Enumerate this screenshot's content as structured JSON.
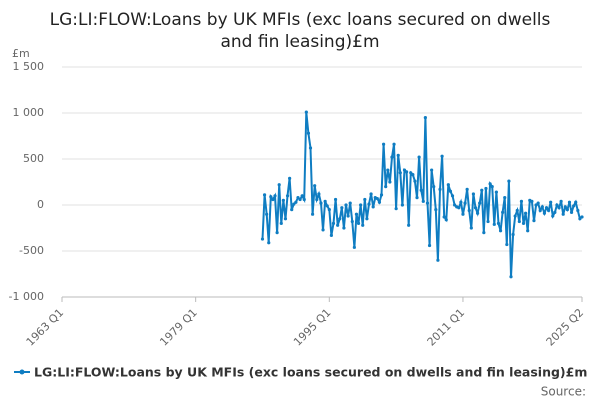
{
  "chart_data": {
    "type": "line",
    "title": "LG:LI:FLOW:Loans by UK MFIs (exc loans secured on dwells and fin leasing)£m",
    "y_label": "£m",
    "source": "Source:",
    "x": [
      "1987 Q1",
      "1987 Q2",
      "1987 Q3",
      "1987 Q4",
      "1988 Q1",
      "1988 Q2",
      "1988 Q3",
      "1988 Q4",
      "1989 Q1",
      "1989 Q2",
      "1989 Q3",
      "1989 Q4",
      "1990 Q1",
      "1990 Q2",
      "1990 Q3",
      "1990 Q4",
      "1991 Q1",
      "1991 Q2",
      "1991 Q3",
      "1991 Q4",
      "1992 Q1",
      "1992 Q2",
      "1992 Q3",
      "1992 Q4",
      "1993 Q1",
      "1993 Q2",
      "1993 Q3",
      "1993 Q4",
      "1994 Q1",
      "1994 Q2",
      "1994 Q3",
      "1994 Q4",
      "1995 Q1",
      "1995 Q2",
      "1995 Q3",
      "1995 Q4",
      "1996 Q1",
      "1996 Q2",
      "1996 Q3",
      "1996 Q4",
      "1997 Q1",
      "1997 Q2",
      "1997 Q3",
      "1997 Q4",
      "1998 Q1",
      "1998 Q2",
      "1998 Q3",
      "1998 Q4",
      "1999 Q1",
      "1999 Q2",
      "1999 Q3",
      "1999 Q4",
      "2000 Q1",
      "2000 Q2",
      "2000 Q3",
      "2000 Q4",
      "2001 Q1",
      "2001 Q2",
      "2001 Q3",
      "2001 Q4",
      "2002 Q1",
      "2002 Q2",
      "2002 Q3",
      "2002 Q4",
      "2003 Q1",
      "2003 Q2",
      "2003 Q3",
      "2003 Q4",
      "2004 Q1",
      "2004 Q2",
      "2004 Q3",
      "2004 Q4",
      "2005 Q1",
      "2005 Q2",
      "2005 Q3",
      "2005 Q4",
      "2006 Q1",
      "2006 Q2",
      "2006 Q3",
      "2006 Q4",
      "2007 Q1",
      "2007 Q2",
      "2007 Q3",
      "2007 Q4",
      "2008 Q1",
      "2008 Q2",
      "2008 Q3",
      "2008 Q4",
      "2009 Q1",
      "2009 Q2",
      "2009 Q3",
      "2009 Q4",
      "2010 Q1",
      "2010 Q2",
      "2010 Q3",
      "2010 Q4",
      "2011 Q1",
      "2011 Q2",
      "2011 Q3",
      "2011 Q4",
      "2012 Q1",
      "2012 Q2",
      "2012 Q3",
      "2012 Q4",
      "2013 Q1",
      "2013 Q2",
      "2013 Q3",
      "2013 Q4",
      "2014 Q1",
      "2014 Q2",
      "2014 Q3",
      "2014 Q4",
      "2015 Q1",
      "2015 Q2",
      "2015 Q3",
      "2015 Q4",
      "2016 Q1",
      "2016 Q2",
      "2016 Q3",
      "2016 Q4",
      "2017 Q1",
      "2017 Q2",
      "2017 Q3",
      "2017 Q4",
      "2018 Q1",
      "2018 Q2",
      "2018 Q3",
      "2018 Q4",
      "2019 Q1",
      "2019 Q2",
      "2019 Q3",
      "2019 Q4",
      "2020 Q1",
      "2020 Q2",
      "2020 Q3",
      "2020 Q4",
      "2021 Q1",
      "2021 Q2",
      "2021 Q3",
      "2021 Q4",
      "2022 Q1",
      "2022 Q2",
      "2022 Q3",
      "2022 Q4",
      "2023 Q1",
      "2023 Q2",
      "2023 Q3",
      "2023 Q4",
      "2024 Q1",
      "2024 Q2",
      "2024 Q3",
      "2024 Q4",
      "2025 Q1",
      "2025 Q2"
    ],
    "series": [
      {
        "name": "LG:LI:FLOW:Loans by UK MFIs (exc loans secured on dwells and fin leasing)£m",
        "color": "#0f7dc2",
        "values": [
          -370,
          110,
          -100,
          -410,
          90,
          60,
          100,
          -300,
          220,
          -200,
          50,
          -150,
          100,
          290,
          -50,
          10,
          30,
          80,
          60,
          100,
          60,
          1010,
          780,
          620,
          -100,
          210,
          60,
          120,
          20,
          -270,
          40,
          -10,
          -50,
          -330,
          -200,
          60,
          -220,
          -150,
          -30,
          -250,
          0,
          -120,
          20,
          -180,
          -460,
          -100,
          -200,
          0,
          -220,
          60,
          -150,
          10,
          120,
          -20,
          80,
          70,
          30,
          110,
          660,
          200,
          380,
          250,
          520,
          660,
          -40,
          540,
          350,
          0,
          380,
          360,
          -220,
          350,
          330,
          260,
          80,
          520,
          160,
          40,
          950,
          20,
          -440,
          380,
          200,
          -50,
          -600,
          170,
          530,
          -130,
          -160,
          220,
          150,
          100,
          0,
          -20,
          -30,
          30,
          -100,
          20,
          170,
          -60,
          -250,
          120,
          -30,
          -90,
          20,
          160,
          -300,
          180,
          -180,
          230,
          200,
          -210,
          140,
          -200,
          -280,
          -80,
          80,
          -430,
          260,
          -780,
          -320,
          -120,
          -60,
          -180,
          40,
          -200,
          -90,
          -280,
          50,
          40,
          -170,
          0,
          20,
          -60,
          -20,
          -90,
          -30,
          -60,
          30,
          -120,
          -80,
          0,
          -30,
          40,
          -100,
          -20,
          -50,
          30,
          -80,
          -10,
          30,
          -60,
          -150,
          -130
        ]
      }
    ],
    "xticks": [
      "1963 Q1",
      "1979 Q1",
      "1995 Q1",
      "2011 Q1",
      "2025 Q2"
    ],
    "ylim": [
      -1000,
      1500
    ],
    "yticks": [
      {
        "value": -1000,
        "label": "-1 000"
      },
      -500,
      0,
      500,
      {
        "value": 1000,
        "label": "1 000"
      },
      {
        "value": 1500,
        "label": "1 500"
      }
    ],
    "grid": true
  }
}
